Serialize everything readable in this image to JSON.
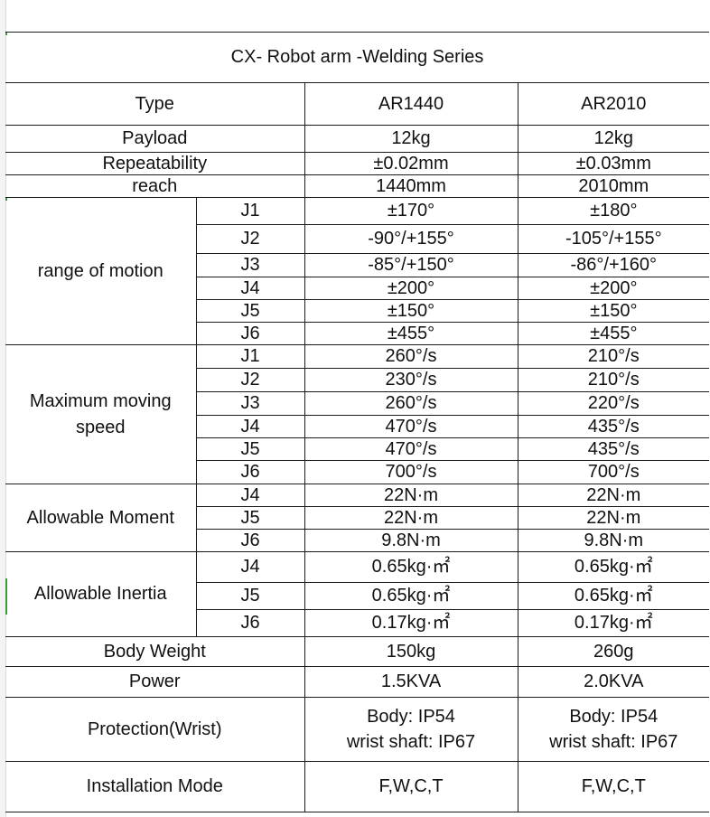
{
  "title": "CX- Robot arm -Welding Series",
  "header": {
    "label": "Type",
    "models": [
      "AR1440",
      "AR2010"
    ]
  },
  "simple_rows_top": [
    {
      "label": "Payload",
      "values": [
        "12kg",
        "12kg"
      ]
    },
    {
      "label": "Repeatability",
      "values": [
        "±0.02mm",
        "±0.03mm"
      ]
    },
    {
      "label": "reach",
      "values": [
        "1440mm",
        "2010mm"
      ]
    }
  ],
  "groups": [
    {
      "label": "range of motion",
      "rows": [
        {
          "joint": "J1",
          "values": [
            "±170°",
            "±180°"
          ]
        },
        {
          "joint": "J2",
          "values": [
            "-90°/+155°",
            "-105°/+155°"
          ]
        },
        {
          "joint": "J3",
          "values": [
            "-85°/+150°",
            "-86°/+160°"
          ]
        },
        {
          "joint": "J4",
          "values": [
            "±200°",
            "±200°"
          ]
        },
        {
          "joint": "J5",
          "values": [
            "±150°",
            "±150°"
          ]
        },
        {
          "joint": "J6",
          "values": [
            "±455°",
            "±455°"
          ]
        }
      ]
    },
    {
      "label": "Maximum moving speed",
      "rows": [
        {
          "joint": "J1",
          "values": [
            "260°/s",
            "210°/s"
          ]
        },
        {
          "joint": "J2",
          "values": [
            "230°/s",
            "210°/s"
          ]
        },
        {
          "joint": "J3",
          "values": [
            "260°/s",
            "220°/s"
          ]
        },
        {
          "joint": "J4",
          "values": [
            "470°/s",
            "435°/s"
          ]
        },
        {
          "joint": "J5",
          "values": [
            "470°/s",
            "435°/s"
          ]
        },
        {
          "joint": "J6",
          "values": [
            "700°/s",
            "700°/s"
          ]
        }
      ]
    },
    {
      "label": "Allowable Moment",
      "rows": [
        {
          "joint": "J4",
          "values": [
            "22N·m",
            "22N·m"
          ]
        },
        {
          "joint": "J5",
          "values": [
            "22N·m",
            "22N·m"
          ]
        },
        {
          "joint": "J6",
          "values": [
            "9.8N·m",
            "9.8N·m"
          ]
        }
      ]
    },
    {
      "label": "Allowable Inertia",
      "rows": [
        {
          "joint": "J4",
          "values": [
            "0.65kg·㎡",
            "0.65kg·㎡"
          ]
        },
        {
          "joint": "J5",
          "values": [
            "0.65kg·㎡",
            "0.65kg·㎡"
          ]
        },
        {
          "joint": "J6",
          "values": [
            "0.17kg·㎡",
            "0.17kg·㎡"
          ]
        }
      ]
    }
  ],
  "simple_rows_bottom": [
    {
      "label": "Body Weight",
      "values": [
        "150kg",
        "260g"
      ]
    },
    {
      "label": "Power",
      "values": [
        "1.5KVA",
        "2.0KVA"
      ]
    },
    {
      "label": "Protection(Wrist)",
      "values": [
        "Body: IP54\nwrist shaft: IP67",
        "Body: IP54\nwrist shaft: IP67"
      ]
    },
    {
      "label": "Installation Mode",
      "values": [
        "F,W,C,T",
        "F,W,C,T"
      ]
    }
  ]
}
